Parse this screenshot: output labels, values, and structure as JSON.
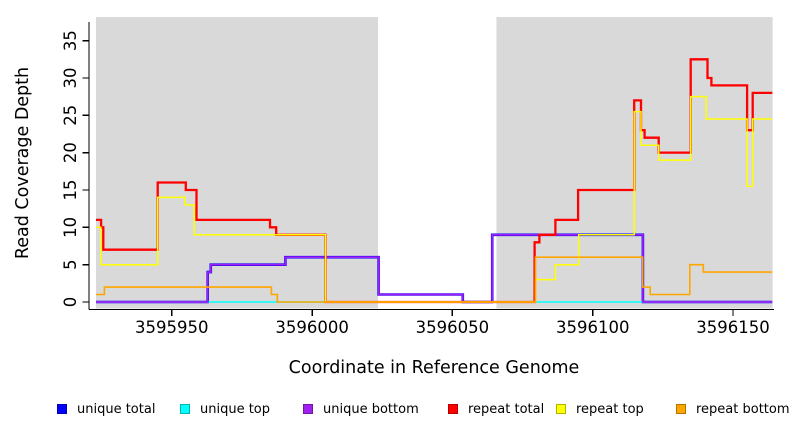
{
  "chart_data": {
    "type": "line",
    "subtype": "step-coverage-plot",
    "title": "",
    "xlabel": "Coordinate in Reference Genome",
    "ylabel": "Read Coverage Depth",
    "xlim": [
      3595923,
      3596164
    ],
    "ylim": [
      0,
      37
    ],
    "grid": false,
    "panel_band_color": "#D9D9D9",
    "shaded_regions": [
      {
        "x0": 3595923,
        "x1": 3596023.5
      },
      {
        "x0": 3596065.7,
        "x1": 3596164.1
      }
    ],
    "x_ticks": [
      {
        "value": 3595950,
        "label": "3595950"
      },
      {
        "value": 3596000,
        "label": "3596000"
      },
      {
        "value": 3596050,
        "label": "3596050"
      },
      {
        "value": 3596100,
        "label": "3596100"
      },
      {
        "value": 3596150,
        "label": "3596150"
      }
    ],
    "y_ticks": [
      {
        "value": 0,
        "label": "0"
      },
      {
        "value": 5,
        "label": "5"
      },
      {
        "value": 10,
        "label": "10"
      },
      {
        "value": 15,
        "label": "15"
      },
      {
        "value": 20,
        "label": "20"
      },
      {
        "value": 25,
        "label": "25"
      },
      {
        "value": 30,
        "label": "30"
      },
      {
        "value": 35,
        "label": "35"
      }
    ],
    "series": [
      {
        "name": "unique total",
        "color": "#0000FF",
        "steps": [
          [
            3595923,
            0
          ],
          [
            3595962.8,
            4
          ],
          [
            3595963.9,
            5
          ],
          [
            3595990.5,
            6
          ],
          [
            3596023.7,
            1
          ],
          [
            3596053.7,
            0
          ],
          [
            3596064.2,
            9
          ],
          [
            3596117.9,
            0
          ]
        ]
      },
      {
        "name": "unique top",
        "color": "#00FFFF",
        "steps": [
          [
            3595923,
            0
          ]
        ]
      },
      {
        "name": "unique bottom",
        "color": "#A020F0",
        "steps": [
          [
            3595923,
            0
          ],
          [
            3595962.8,
            4
          ],
          [
            3595963.9,
            5
          ],
          [
            3595990.5,
            6
          ],
          [
            3596023.7,
            1
          ],
          [
            3596053.7,
            0
          ],
          [
            3596064.2,
            9
          ],
          [
            3596117.9,
            0
          ]
        ]
      },
      {
        "name": "repeat total",
        "color": "#FF0000",
        "steps": [
          [
            3595923,
            11
          ],
          [
            3595924.8,
            10
          ],
          [
            3595925.6,
            7
          ],
          [
            3595945,
            16
          ],
          [
            3595955,
            15
          ],
          [
            3595958.8,
            11
          ],
          [
            3595985,
            10
          ],
          [
            3595987.2,
            9
          ],
          [
            3596004.8,
            0
          ],
          [
            3596079.3,
            8
          ],
          [
            3596081,
            9
          ],
          [
            3596086.7,
            11
          ],
          [
            3596094.8,
            15
          ],
          [
            3596114.8,
            27
          ],
          [
            3596117.2,
            23
          ],
          [
            3596118.5,
            22
          ],
          [
            3596123.5,
            20
          ],
          [
            3596134.9,
            32.5
          ],
          [
            3596140.9,
            30
          ],
          [
            3596142.3,
            29
          ],
          [
            3596155,
            23
          ],
          [
            3596157,
            28
          ]
        ]
      },
      {
        "name": "repeat top",
        "color": "#FFFF00",
        "steps": [
          [
            3595923,
            10
          ],
          [
            3595924.7,
            5
          ],
          [
            3595945,
            14
          ],
          [
            3595954.8,
            13
          ],
          [
            3595958,
            9
          ],
          [
            3596004.8,
            0
          ],
          [
            3596079.6,
            3
          ],
          [
            3596086.7,
            5
          ],
          [
            3596095,
            9
          ],
          [
            3596114.8,
            25.5
          ],
          [
            3596117.2,
            21
          ],
          [
            3596123.5,
            19
          ],
          [
            3596134.9,
            27.5
          ],
          [
            3596140.4,
            24.5
          ],
          [
            3596155,
            15.5
          ],
          [
            3596157,
            24.5
          ]
        ]
      },
      {
        "name": "repeat bottom",
        "color": "#FFA500",
        "steps": [
          [
            3595923,
            1
          ],
          [
            3595926,
            2
          ],
          [
            3595985.5,
            1
          ],
          [
            3595987.6,
            0
          ],
          [
            3596079.6,
            6
          ],
          [
            3596117.8,
            2
          ],
          [
            3596120.5,
            1
          ],
          [
            3596134.6,
            5
          ],
          [
            3596139.4,
            4
          ]
        ]
      }
    ],
    "legend_position": "bottom"
  },
  "legend": {
    "items": [
      {
        "label": "unique total",
        "color": "#0000FF"
      },
      {
        "label": "unique top",
        "color": "#00FFFF"
      },
      {
        "label": "unique bottom",
        "color": "#A020F0"
      },
      {
        "label": "repeat total",
        "color": "#FF0000"
      },
      {
        "label": "repeat top",
        "color": "#FFFF00"
      },
      {
        "label": "repeat bottom",
        "color": "#FFA500"
      }
    ]
  }
}
